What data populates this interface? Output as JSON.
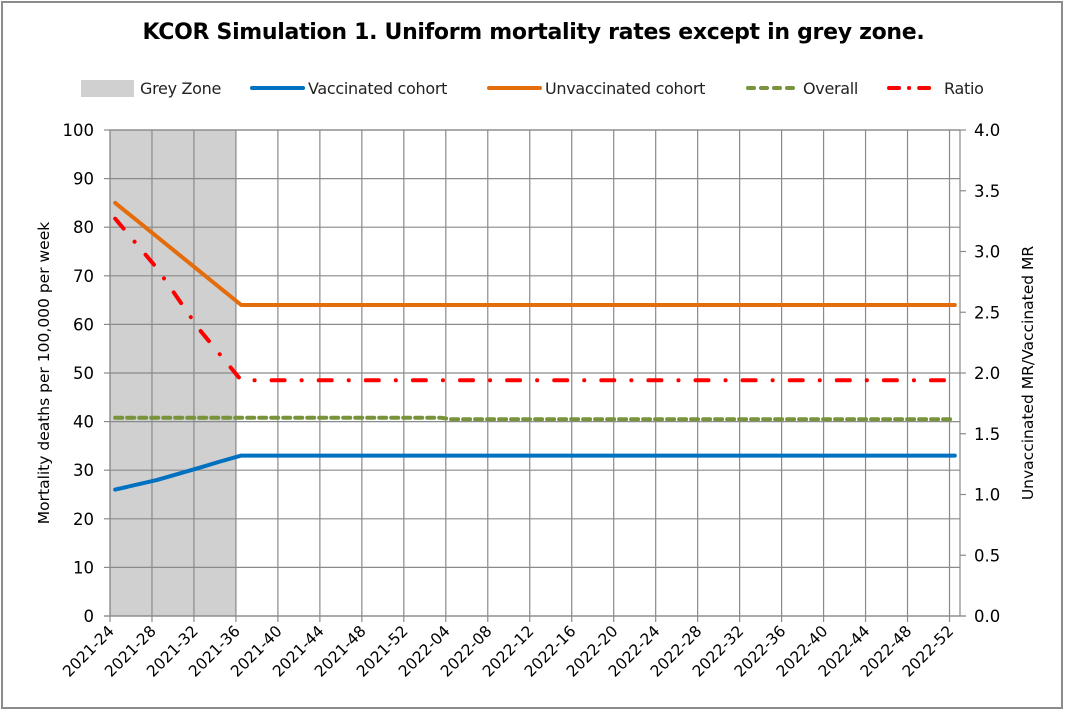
{
  "chart_data": {
    "type": "line",
    "title": "KCOR Simulation 1. Uniform mortality rates except in grey zone.",
    "xlabel": "",
    "ylabel": "Mortality deaths per 100,000 per week",
    "y2label": "Unvaccinated MR/Vaccinated MR",
    "ylim": [
      0,
      100
    ],
    "y2lim": [
      0,
      4.0
    ],
    "yticks": [
      "0",
      "10",
      "20",
      "30",
      "40",
      "50",
      "60",
      "70",
      "80",
      "90",
      "100"
    ],
    "y2ticks": [
      "0.0",
      "0.5",
      "1.0",
      "1.5",
      "2.0",
      "2.5",
      "3.0",
      "3.5",
      "4.0"
    ],
    "grid": true,
    "legend_position": "top",
    "x_start": "2021-24",
    "x_end": "2022-52",
    "n_weeks": 81,
    "tick_labels": [
      "2021-24",
      "2021-28",
      "2021-32",
      "2021-36",
      "2021-40",
      "2021-44",
      "2021-48",
      "2021-52",
      "2022-04",
      "2022-08",
      "2022-12",
      "2022-16",
      "2022-20",
      "2022-24",
      "2022-28",
      "2022-32",
      "2022-36",
      "2022-40",
      "2022-44",
      "2022-48",
      "2022-52"
    ],
    "grey_zone": {
      "name": "Grey Zone",
      "from": "2021-24",
      "to": "2021-36",
      "color": "#d0d0d0"
    },
    "series": [
      {
        "name": "Vaccinated cohort",
        "axis": "left",
        "color": "#0070c0",
        "style": "solid",
        "breakpoints": [
          {
            "x": "2021-24",
            "y": 26.0
          },
          {
            "x": "2021-28",
            "y": 28.0
          },
          {
            "x": "2021-32",
            "y": 30.5
          },
          {
            "x": "2021-34",
            "y": 31.8
          },
          {
            "x": "2021-36",
            "y": 33.0
          },
          {
            "x": "2022-52",
            "y": 33.0
          }
        ]
      },
      {
        "name": "Unvaccinated cohort",
        "axis": "left",
        "color": "#e46c0a",
        "style": "solid",
        "breakpoints": [
          {
            "x": "2021-24",
            "y": 85.0
          },
          {
            "x": "2021-36",
            "y": 64.0
          },
          {
            "x": "2022-52",
            "y": 64.0
          }
        ]
      },
      {
        "name": "Overall",
        "axis": "left",
        "color": "#77933c",
        "style": "dash",
        "breakpoints": [
          {
            "x": "2021-24",
            "y": 40.8
          },
          {
            "x": "2022-03",
            "y": 40.8
          },
          {
            "x": "2022-04",
            "y": 40.5
          },
          {
            "x": "2022-52",
            "y": 40.5
          }
        ]
      },
      {
        "name": "Ratio",
        "axis": "right",
        "color": "#ff0000",
        "style": "dashdot",
        "breakpoints": [
          {
            "x": "2021-24",
            "y": 3.27
          },
          {
            "x": "2021-28",
            "y": 2.86
          },
          {
            "x": "2021-32",
            "y": 2.36
          },
          {
            "x": "2021-36",
            "y": 1.94
          },
          {
            "x": "2022-51",
            "y": 1.94
          }
        ]
      }
    ]
  }
}
